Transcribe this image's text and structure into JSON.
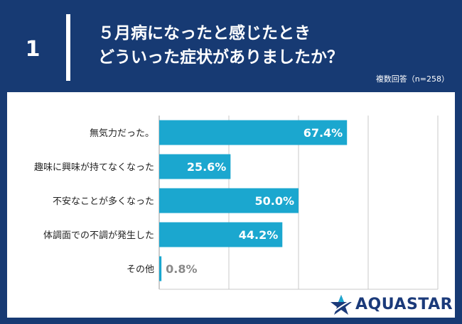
{
  "question": {
    "number": "1",
    "line1": "５月病になったと感じたとき",
    "line2": "どういった症状がありましたか？"
  },
  "sample_note": "複数回答（n=258）",
  "logo": {
    "text": "AQUASTAR",
    "icon": "star-icon"
  },
  "colors": {
    "header_bg": "#173a73",
    "bar": "#1ba7cf",
    "label_inside": "#ffffff",
    "label_outside": "#8a8a8a"
  },
  "chart_data": {
    "type": "bar",
    "orientation": "horizontal",
    "categories": [
      "無気力だった。",
      "趣味に興味が持てなくなった",
      "不安なことが多くなった",
      "体調面での不調が発生した",
      "その他"
    ],
    "values": [
      67.4,
      25.6,
      50.0,
      44.2,
      0.8
    ],
    "value_labels": [
      "67.4%",
      "25.6%",
      "50.0%",
      "44.2%",
      "0.8%"
    ],
    "xlim": [
      0,
      100
    ],
    "grid": true
  }
}
